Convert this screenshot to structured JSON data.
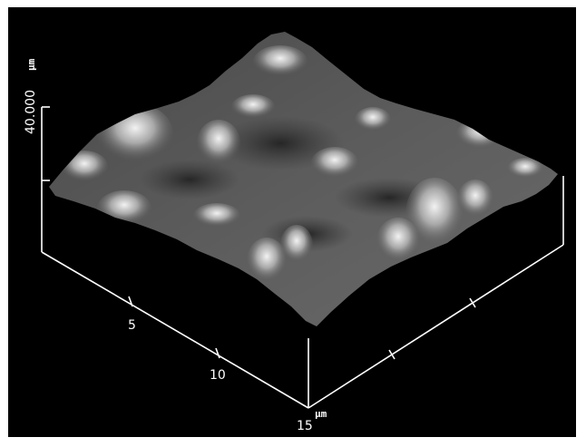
{
  "image": {
    "z_axis": {
      "unit": "µm",
      "max_label": "40.000"
    },
    "y_axis": {
      "ticks": [
        "5",
        "10",
        "15"
      ]
    },
    "x_axis": {
      "unit": "µm"
    }
  },
  "colors": {
    "background": "#000000",
    "frame": "#ffffff",
    "axis": "#ffffff"
  }
}
